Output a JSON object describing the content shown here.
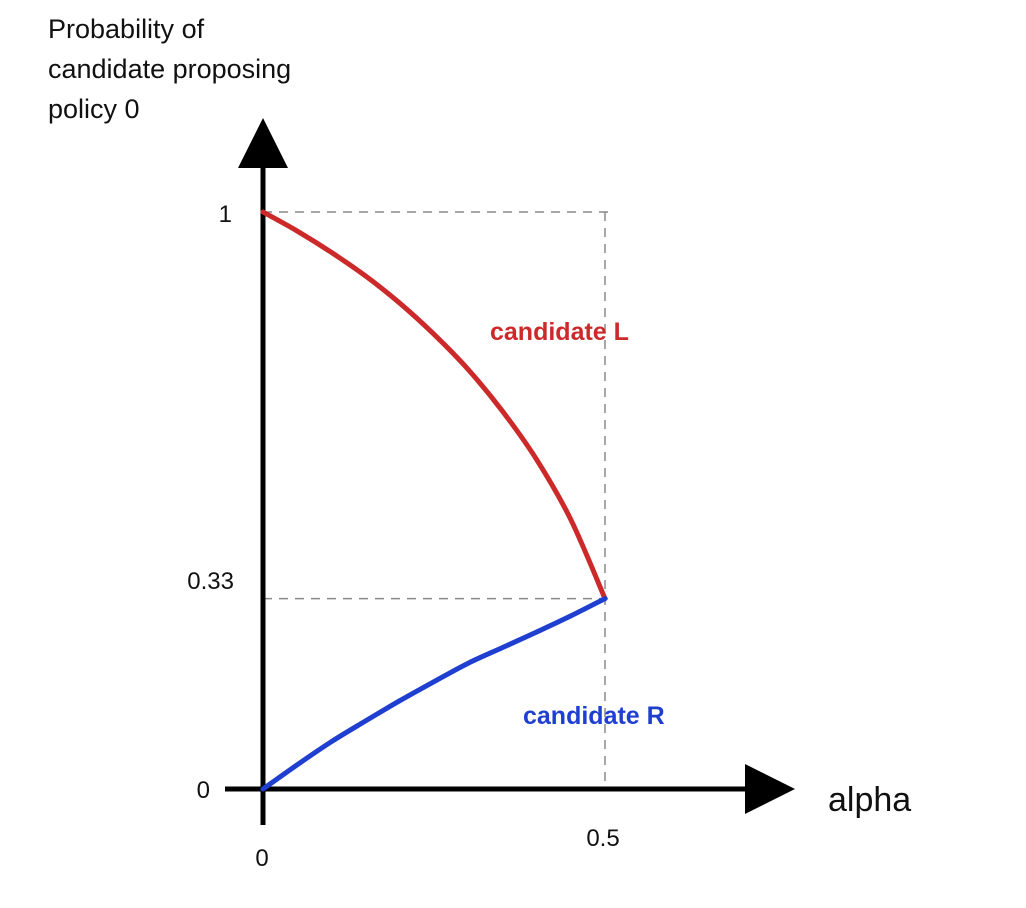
{
  "chart_data": {
    "type": "line",
    "ylabel": "Probability of candidate proposing policy 0",
    "ylabel_lines": [
      "Probability of",
      "candidate proposing",
      "policy 0"
    ],
    "xlabel": "alpha",
    "x_origin_label": "0",
    "x_ticks": [
      {
        "value": 0.5,
        "label": "0.5"
      }
    ],
    "y_ticks": [
      {
        "value": 0,
        "label": "0"
      },
      {
        "value": 0.33,
        "label": "0.33"
      },
      {
        "value": 1,
        "label": "1"
      }
    ],
    "guides": [
      {
        "type": "horizontal",
        "y": 1,
        "x_from": 0,
        "x_to": 0.5
      },
      {
        "type": "horizontal",
        "y": 0.33,
        "x_from": 0,
        "x_to": 0.5
      },
      {
        "type": "vertical",
        "x": 0.5,
        "y_from": 0,
        "y_to": 1
      }
    ],
    "xlim": [
      0,
      0.75
    ],
    "ylim": [
      0,
      1.2
    ],
    "grid": false,
    "series": [
      {
        "name": "candidate L",
        "color": "#cc2a2a",
        "points": [
          [
            0,
            1.0
          ],
          [
            0.05,
            0.967
          ],
          [
            0.1,
            0.93
          ],
          [
            0.15,
            0.889
          ],
          [
            0.2,
            0.842
          ],
          [
            0.25,
            0.788
          ],
          [
            0.3,
            0.727
          ],
          [
            0.35,
            0.655
          ],
          [
            0.4,
            0.571
          ],
          [
            0.45,
            0.467
          ],
          [
            0.5,
            0.33
          ]
        ]
      },
      {
        "name": "candidate R",
        "color": "#1f3fd1",
        "points": [
          [
            0,
            0.0
          ],
          [
            0.05,
            0.042
          ],
          [
            0.1,
            0.082
          ],
          [
            0.15,
            0.118
          ],
          [
            0.2,
            0.153
          ],
          [
            0.25,
            0.186
          ],
          [
            0.3,
            0.218
          ],
          [
            0.35,
            0.245
          ],
          [
            0.4,
            0.272
          ],
          [
            0.45,
            0.3
          ],
          [
            0.5,
            0.33
          ]
        ]
      }
    ]
  }
}
